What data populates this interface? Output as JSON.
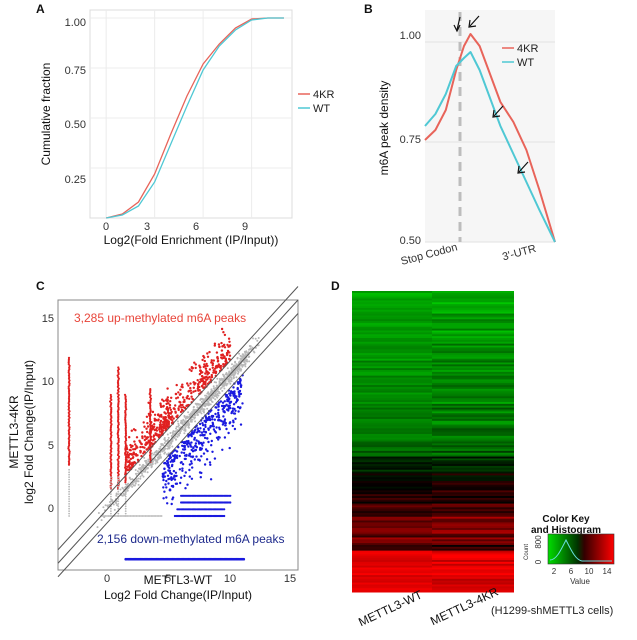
{
  "panels": {
    "A": {
      "letter": "A",
      "xlabel": "Log2(Fold Enrichment (IP/Input))",
      "ylabel": "Cumulative fraction",
      "xticks": [
        "0",
        "3",
        "6",
        "9"
      ],
      "yticks": [
        "0.25",
        "0.50",
        "0.75",
        "1.00"
      ],
      "legend": [
        "4KR",
        "WT"
      ]
    },
    "B": {
      "letter": "B",
      "ylabel": "m6A peak density",
      "yticks": [
        "0.50",
        "0.75",
        "1.00"
      ],
      "xticks": [
        "Stop Codon",
        "3'-UTR"
      ],
      "legend": [
        "4KR",
        "WT"
      ]
    },
    "C": {
      "letter": "C",
      "xlabel_line1": "METTL3-WT",
      "xlabel_line2": "Log2 Fold Change(IP/Input)",
      "ylabel_line1": "METTL3-4KR",
      "ylabel_line2": "log2 Fold Change(IP/Input)",
      "xticks": [
        "0",
        "5",
        "10",
        "15"
      ],
      "yticks": [
        "0",
        "5",
        "10",
        "15"
      ],
      "annotation_up": "3,285 up-methylated m6A peaks",
      "annotation_down": "2,156 down-methylated m6A peaks"
    },
    "D": {
      "letter": "D",
      "columns": [
        "METTL3-WT",
        "METTL3-4KR"
      ],
      "note": "(H1299-shMETTL3 cells)",
      "colorkey_title_line1": "Color Key",
      "colorkey_title_line2": "and Histogram",
      "colorkey_count_label": "Count",
      "colorkey_count_ticks": [
        "0",
        "800"
      ],
      "colorkey_value_label": "Value",
      "colorkey_value_ticks": [
        "2",
        "6",
        "10",
        "14"
      ]
    }
  },
  "colors": {
    "kr": "#e8645a",
    "wt": "#4fc8d4",
    "up": "#e02020",
    "down": "#1a1adf",
    "neutral": "#b8b8b8",
    "heat_green": "#00dd00",
    "heat_black": "#000000",
    "heat_red": "#ff0000"
  },
  "chart_data": [
    {
      "panel": "A",
      "type": "line",
      "xlabel": "Log2(Fold Enrichment (IP/Input))",
      "ylabel": "Cumulative fraction",
      "xlim": [
        -1,
        11.5
      ],
      "ylim": [
        0,
        1.04
      ],
      "series": [
        {
          "name": "4KR",
          "x": [
            0,
            1,
            2,
            3,
            4,
            5,
            6,
            7,
            8,
            9,
            10,
            11
          ],
          "values": [
            0.0,
            0.02,
            0.08,
            0.22,
            0.42,
            0.61,
            0.77,
            0.87,
            0.95,
            0.995,
            1.0,
            1.0
          ]
        },
        {
          "name": "WT",
          "x": [
            0,
            1,
            2,
            3,
            4,
            5,
            6,
            7,
            8,
            9,
            10,
            11
          ],
          "values": [
            0.0,
            0.015,
            0.06,
            0.18,
            0.37,
            0.56,
            0.74,
            0.86,
            0.94,
            0.99,
            1.0,
            1.0
          ]
        }
      ]
    },
    {
      "panel": "B",
      "type": "line",
      "ylabel": "m6A peak density",
      "ylim": [
        0.5,
        1.08
      ],
      "x": [
        0,
        0.08,
        0.16,
        0.24,
        0.3,
        0.35,
        0.42,
        0.5,
        0.58,
        0.68,
        0.78,
        0.88,
        1.0
      ],
      "series": [
        {
          "name": "4KR",
          "values": [
            0.755,
            0.78,
            0.83,
            0.93,
            0.99,
            1.02,
            0.99,
            0.92,
            0.85,
            0.8,
            0.73,
            0.63,
            0.5
          ]
        },
        {
          "name": "WT",
          "values": [
            0.79,
            0.82,
            0.87,
            0.94,
            0.96,
            0.975,
            0.93,
            0.86,
            0.79,
            0.72,
            0.65,
            0.58,
            0.5
          ]
        }
      ]
    },
    {
      "panel": "C",
      "type": "scatter",
      "xlabel": "METTL3-WT Log2 Fold Change(IP/Input)",
      "ylabel": "METTL3-4KR log2 Fold Change(IP/Input)",
      "xlim": [
        -3.5,
        16
      ],
      "ylim": [
        -4,
        16
      ],
      "series": [
        {
          "name": "3,285 up-methylated m6A peaks",
          "count": 3285
        },
        {
          "name": "2,156 down-methylated m6A peaks",
          "count": 2156
        }
      ]
    },
    {
      "panel": "D",
      "type": "heatmap",
      "columns": [
        "METTL3-WT",
        "METTL3-4KR"
      ],
      "value_range": [
        2,
        14
      ]
    }
  ]
}
